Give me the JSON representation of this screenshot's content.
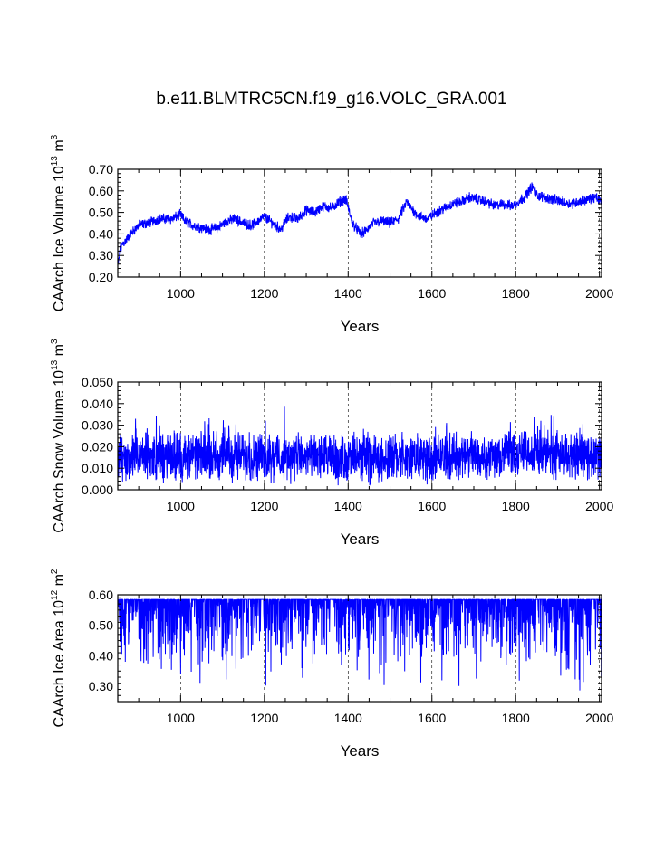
{
  "title": "b.e11.BLMTRC5CN.f19_g16.VOLC_GRA.001",
  "series_color": "#0000ff",
  "chart_data": [
    {
      "type": "line",
      "name": "ice-volume",
      "ylabel": {
        "base": "CAArch Ice Volume 10",
        "exp": "13",
        "unit": " m",
        "unit_exp": "3"
      },
      "xlabel": "Years",
      "xlim": [
        850,
        2005
      ],
      "ylim": [
        0.2,
        0.7
      ],
      "xticks": [
        1000,
        1200,
        1400,
        1600,
        1800,
        2000
      ],
      "xtick_labels": [
        "1000",
        "1200",
        "1400",
        "1600",
        "1800",
        "2000"
      ],
      "yticks": [
        0.2,
        0.3,
        0.4,
        0.5,
        0.6,
        0.7
      ],
      "ytick_labels": [
        "0.20",
        "0.30",
        "0.40",
        "0.50",
        "0.60",
        "0.70"
      ],
      "grid_x": true,
      "x": [
        850,
        855,
        860,
        870,
        880,
        900,
        920,
        950,
        980,
        1000,
        1010,
        1030,
        1050,
        1070,
        1090,
        1110,
        1130,
        1150,
        1170,
        1200,
        1220,
        1240,
        1250,
        1260,
        1280,
        1300,
        1320,
        1340,
        1360,
        1380,
        1395,
        1410,
        1430,
        1440,
        1460,
        1480,
        1500,
        1520,
        1540,
        1550,
        1570,
        1590,
        1610,
        1630,
        1650,
        1670,
        1690,
        1710,
        1730,
        1750,
        1770,
        1790,
        1800,
        1820,
        1840,
        1850,
        1870,
        1890,
        1910,
        1930,
        1950,
        1970,
        1990,
        2005
      ],
      "values": [
        0.25,
        0.31,
        0.35,
        0.37,
        0.4,
        0.44,
        0.45,
        0.47,
        0.47,
        0.49,
        0.46,
        0.44,
        0.43,
        0.42,
        0.43,
        0.46,
        0.47,
        0.45,
        0.44,
        0.48,
        0.45,
        0.42,
        0.46,
        0.48,
        0.47,
        0.51,
        0.5,
        0.53,
        0.52,
        0.55,
        0.56,
        0.45,
        0.4,
        0.41,
        0.45,
        0.46,
        0.45,
        0.47,
        0.55,
        0.52,
        0.48,
        0.47,
        0.5,
        0.52,
        0.54,
        0.55,
        0.57,
        0.56,
        0.55,
        0.53,
        0.54,
        0.53,
        0.54,
        0.57,
        0.62,
        0.58,
        0.57,
        0.56,
        0.55,
        0.54,
        0.55,
        0.56,
        0.57,
        0.55
      ],
      "noise": 0.018
    },
    {
      "type": "line",
      "name": "snow-volume",
      "ylabel": {
        "base": "CAArch Snow Volume 10",
        "exp": "13",
        "unit": " m",
        "unit_exp": "3"
      },
      "xlabel": "Years",
      "xlim": [
        850,
        2005
      ],
      "ylim": [
        0.0,
        0.05
      ],
      "xticks": [
        1000,
        1200,
        1400,
        1600,
        1800,
        2000
      ],
      "xtick_labels": [
        "1000",
        "1200",
        "1400",
        "1600",
        "1800",
        "2000"
      ],
      "yticks": [
        0.0,
        0.01,
        0.02,
        0.03,
        0.04,
        0.05
      ],
      "ytick_labels": [
        "0.000",
        "0.010",
        "0.020",
        "0.030",
        "0.040",
        "0.050"
      ],
      "grid_x": true,
      "x": [
        850,
        900,
        1000,
        1100,
        1200,
        1300,
        1400,
        1500,
        1600,
        1700,
        1800,
        1840,
        1900,
        1960,
        2005
      ],
      "values": [
        0.014,
        0.015,
        0.015,
        0.016,
        0.015,
        0.015,
        0.014,
        0.015,
        0.015,
        0.016,
        0.016,
        0.018,
        0.016,
        0.017,
        0.015
      ],
      "noise": 0.008
    },
    {
      "type": "line",
      "name": "ice-area",
      "ylabel": {
        "base": "CAArch Ice Area 10",
        "exp": "12",
        "unit": " m",
        "unit_exp": "2"
      },
      "xlabel": "Years",
      "xlim": [
        850,
        2005
      ],
      "ylim": [
        0.25,
        0.6
      ],
      "xticks": [
        1000,
        1200,
        1400,
        1600,
        1800,
        2000
      ],
      "xtick_labels": [
        "1000",
        "1200",
        "1400",
        "1600",
        "1800",
        "2000"
      ],
      "yticks": [
        0.3,
        0.4,
        0.5,
        0.6
      ],
      "ytick_labels": [
        "0.30",
        "0.40",
        "0.50",
        "0.60"
      ],
      "grid_x": true,
      "cap": 0.585,
      "x": [
        850,
        1000,
        1200,
        1400,
        1450,
        1600,
        1800,
        2005
      ],
      "values": [
        0.51,
        0.52,
        0.53,
        0.5,
        0.48,
        0.52,
        0.52,
        0.53
      ],
      "noise": 0.07
    }
  ]
}
